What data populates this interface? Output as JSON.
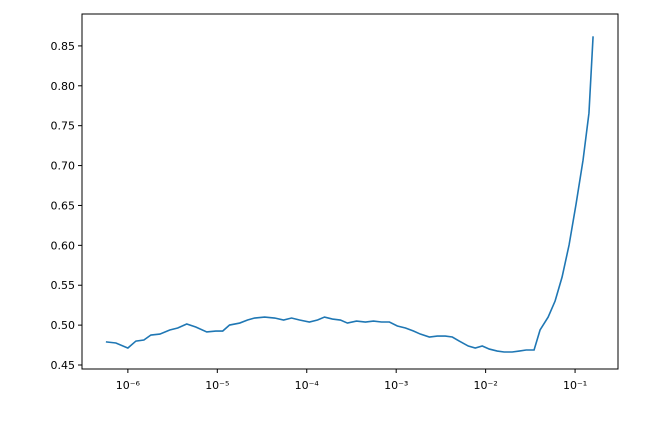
{
  "chart_data": {
    "type": "line",
    "xscale": "log",
    "color": "#1f77b4",
    "xlim": [
      3.07e-07,
      0.302
    ],
    "ylim": [
      0.445,
      0.89
    ],
    "xticks": [
      {
        "value": 1e-06,
        "label": "10⁻⁶"
      },
      {
        "value": 1e-05,
        "label": "10⁻⁵"
      },
      {
        "value": 0.0001,
        "label": "10⁻⁴"
      },
      {
        "value": 0.001,
        "label": "10⁻³"
      },
      {
        "value": 0.01,
        "label": "10⁻²"
      },
      {
        "value": 0.1,
        "label": "10⁻¹"
      }
    ],
    "yticks": [
      0.45,
      {
        "value": 0.5,
        "label": "0.50"
      },
      0.55,
      {
        "value": 0.6,
        "label": "0.60"
      },
      0.65,
      {
        "value": 0.7,
        "label": "0.70"
      },
      0.75,
      {
        "value": 0.8,
        "label": "0.80"
      },
      0.85
    ],
    "x": [
      5.68e-07,
      7.35e-07,
      1e-06,
      1.23e-06,
      1.51e-06,
      1.81e-06,
      2.28e-06,
      2.94e-06,
      3.61e-06,
      4.55e-06,
      5.74e-06,
      7.62e-06,
      9.6e-06,
      1.15e-05,
      1.37e-05,
      1.78e-05,
      2.18e-05,
      2.61e-05,
      3.38e-05,
      4.38e-05,
      5.51e-05,
      6.76e-05,
      8.31e-05,
      0.000107,
      0.000132,
      0.000158,
      0.000194,
      0.000238,
      0.000285,
      0.00036,
      0.000453,
      0.000557,
      0.000684,
      0.00084,
      0.00103,
      0.00127,
      0.00156,
      0.00186,
      0.00235,
      0.00288,
      0.00354,
      0.00424,
      0.00507,
      0.0064,
      0.00766,
      0.00917,
      0.011,
      0.0135,
      0.0161,
      0.0198,
      0.0237,
      0.0284,
      0.0348,
      0.0406,
      0.05,
      0.0598,
      0.0716,
      0.0857,
      0.1026,
      0.1228,
      0.143,
      0.159
    ],
    "values": [
      0.479,
      0.4776,
      0.4713,
      0.48,
      0.4813,
      0.4876,
      0.4888,
      0.4939,
      0.4964,
      0.5014,
      0.4976,
      0.4914,
      0.4926,
      0.4926,
      0.5001,
      0.5026,
      0.5064,
      0.5089,
      0.5101,
      0.5089,
      0.5064,
      0.5089,
      0.5064,
      0.5039,
      0.5064,
      0.5101,
      0.5076,
      0.5064,
      0.5026,
      0.5051,
      0.5039,
      0.5051,
      0.5039,
      0.5039,
      0.4989,
      0.4964,
      0.4926,
      0.4888,
      0.4851,
      0.4863,
      0.4863,
      0.4851,
      0.48,
      0.4738,
      0.4713,
      0.4738,
      0.47,
      0.4675,
      0.4663,
      0.4663,
      0.4675,
      0.4688,
      0.4688,
      0.4939,
      0.5101,
      0.5302,
      0.5603,
      0.6004,
      0.6518,
      0.7069,
      0.7658,
      0.862
    ]
  }
}
